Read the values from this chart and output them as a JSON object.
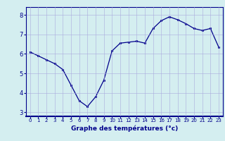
{
  "x": [
    0,
    1,
    2,
    3,
    4,
    5,
    6,
    7,
    8,
    9,
    10,
    11,
    12,
    13,
    14,
    15,
    16,
    17,
    18,
    19,
    20,
    21,
    22,
    23
  ],
  "y": [
    6.1,
    5.9,
    5.7,
    5.5,
    5.2,
    4.4,
    3.6,
    3.3,
    3.8,
    4.65,
    6.15,
    6.55,
    6.6,
    6.65,
    6.55,
    7.3,
    7.7,
    7.9,
    7.75,
    7.55,
    7.3,
    7.2,
    7.3,
    6.35
  ],
  "xlim": [
    -0.5,
    23.5
  ],
  "ylim": [
    2.8,
    8.4
  ],
  "yticks": [
    3,
    4,
    5,
    6,
    7,
    8
  ],
  "xticks": [
    0,
    1,
    2,
    3,
    4,
    5,
    6,
    7,
    8,
    9,
    10,
    11,
    12,
    13,
    14,
    15,
    16,
    17,
    18,
    19,
    20,
    21,
    22,
    23
  ],
  "xlabel": "Graphe des températures (°c)",
  "line_color": "#00008b",
  "marker_color": "#00008b",
  "bg_color": "#d4eef0",
  "grid_color": "#aaaadd",
  "axis_color": "#00008b",
  "tick_label_color": "#00008b",
  "xlabel_color": "#00008b",
  "spine_bottom_color": "#00008b"
}
